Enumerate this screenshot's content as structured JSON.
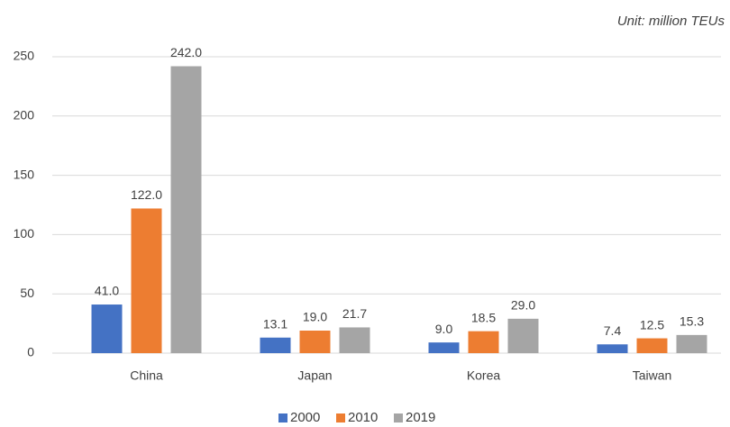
{
  "chart_data": {
    "type": "bar",
    "annotation": "Unit: million TEUs",
    "categories": [
      "China",
      "Japan",
      "Korea",
      "Taiwan"
    ],
    "series": [
      {
        "name": "2000",
        "color": "#4472c4",
        "values": [
          41.0,
          13.1,
          9.0,
          7.4
        ],
        "value_labels": [
          "41.0",
          "13.1",
          "9.0",
          "7.4"
        ]
      },
      {
        "name": "2010",
        "color": "#ed7d31",
        "values": [
          122.0,
          19.0,
          18.5,
          12.5
        ],
        "value_labels": [
          "122.0",
          "19.0",
          "18.5",
          "12.5"
        ]
      },
      {
        "name": "2019",
        "color": "#a5a5a5",
        "values": [
          242.0,
          21.7,
          29.0,
          15.3
        ],
        "value_labels": [
          "242.0",
          "21.7",
          "29.0",
          "15.3"
        ]
      }
    ],
    "ylim": [
      0,
      250
    ],
    "yticks": [
      0,
      50,
      100,
      150,
      200,
      250
    ],
    "grid": true,
    "legend": "bottom"
  }
}
